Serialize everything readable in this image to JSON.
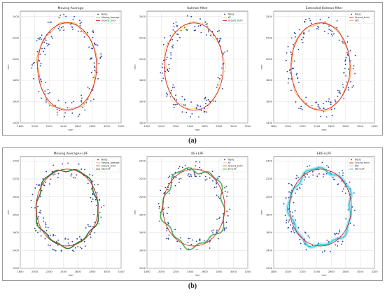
{
  "captions": {
    "a": "(a)",
    "b": "(b)"
  },
  "colors": {
    "noise": "#1f3aa8",
    "ground_truth": "#d62728",
    "ma": "#ff9f2e",
    "kf": "#f5c542",
    "ekf": "#ffa54a",
    "ma_lpf": "#2e7d32",
    "kf_lpf": "#4caf50",
    "ekf_lpf": "#26c6da"
  },
  "chart_data": [
    {
      "type": "scatter",
      "title": "Moving Average",
      "xlabel": "mm",
      "ylabel": "mm",
      "xlim": [
        1800,
        3200
      ],
      "ylim": [
        1400,
        2450
      ],
      "xticks": [
        "1800",
        "2000",
        "2200",
        "2400",
        "2600",
        "2800",
        "3000",
        "3200"
      ],
      "yticks": [
        "1400",
        "1600",
        "1800",
        "2000",
        "2200",
        "2400"
      ],
      "grid": true,
      "legend": "top-right",
      "legend_labels": [
        "Noise",
        "Moving_Average",
        "Ground_truth"
      ],
      "ground_truth": {
        "cx": 2450,
        "cy": 1930,
        "r": 410
      },
      "estimate": {
        "style": "line",
        "color_key": "ma",
        "amp": 12
      }
    },
    {
      "type": "scatter",
      "title": "Kalman filter",
      "xlabel": "mm",
      "ylabel": "mm",
      "xlim": [
        1800,
        3200
      ],
      "ylim": [
        1400,
        2450
      ],
      "xticks": [
        "1800",
        "2000",
        "2200",
        "2400",
        "2600",
        "2800",
        "3000",
        "3200"
      ],
      "yticks": [
        "1400",
        "1600",
        "1800",
        "2000",
        "2200",
        "2400"
      ],
      "grid": true,
      "legend": "top-right",
      "legend_labels": [
        "Noise",
        "KF",
        "Ground_truth"
      ],
      "ground_truth": {
        "cx": 2450,
        "cy": 1930,
        "r": 410
      },
      "estimate": {
        "style": "dotted",
        "color_key": "kf",
        "amp": 20
      }
    },
    {
      "type": "scatter",
      "title": "Extended Kalman filter",
      "xlabel": "mm",
      "ylabel": "mm",
      "xlim": [
        1800,
        3200
      ],
      "ylim": [
        1400,
        2450
      ],
      "xticks": [
        "1800",
        "2000",
        "2200",
        "2400",
        "2600",
        "2800",
        "3000",
        "3200"
      ],
      "yticks": [
        "1400",
        "1600",
        "1800",
        "2000",
        "2200",
        "2400"
      ],
      "grid": true,
      "legend": "top-right",
      "legend_labels": [
        "Noise",
        "Ground_truth",
        "EKF"
      ],
      "ground_truth": {
        "cx": 2450,
        "cy": 1930,
        "r": 410
      },
      "estimate": {
        "style": "line",
        "color_key": "ekf",
        "amp": 10
      }
    },
    {
      "type": "scatter",
      "title": "Moving Average+LPF",
      "xlabel": "mm",
      "ylabel": "mm",
      "xlim": [
        1800,
        3200
      ],
      "ylim": [
        1200,
        2450
      ],
      "xticks": [
        "1800",
        "2000",
        "2200",
        "2400",
        "2600",
        "2800",
        "3000",
        "3200"
      ],
      "yticks": [
        "1200",
        "1400",
        "1600",
        "1800",
        "2000",
        "2200",
        "2400"
      ],
      "grid": true,
      "legend": "top-right",
      "legend_labels": [
        "Noise",
        "Moving_Average",
        "Ground_truth",
        "MA+LPF"
      ],
      "ground_truth": {
        "cx": 2450,
        "cy": 1880,
        "r": 430
      },
      "estimate": {
        "style": "thick",
        "color_key": "ma_lpf",
        "amp": 18
      }
    },
    {
      "type": "scatter",
      "title": "KF+LPF",
      "xlabel": "mm",
      "ylabel": "mm",
      "xlim": [
        1800,
        3200
      ],
      "ylim": [
        1200,
        2450
      ],
      "xticks": [
        "1800",
        "2000",
        "2200",
        "2400",
        "2600",
        "2800",
        "3000",
        "3200"
      ],
      "yticks": [
        "1200",
        "1400",
        "1600",
        "1800",
        "2000",
        "2200",
        "2400"
      ],
      "grid": true,
      "legend": "top-right",
      "legend_labels": [
        "Noise",
        "KF",
        "Ground_truth",
        "KF+LPF"
      ],
      "ground_truth": {
        "cx": 2450,
        "cy": 1880,
        "r": 430
      },
      "estimate": {
        "style": "thick",
        "color_key": "kf_lpf",
        "amp": 30
      }
    },
    {
      "type": "scatter",
      "title": "EKF+LPF",
      "xlabel": "mm",
      "ylabel": "mm",
      "xlim": [
        1800,
        3200
      ],
      "ylim": [
        1200,
        2450
      ],
      "xticks": [
        "1800",
        "2000",
        "2200",
        "2400",
        "2600",
        "2800",
        "3000",
        "3200"
      ],
      "yticks": [
        "1200",
        "1400",
        "1600",
        "1800",
        "2000",
        "2200",
        "2400"
      ],
      "grid": true,
      "legend": "top-right",
      "legend_labels": [
        "Noise",
        "Ground_truth",
        "EKF",
        "EKF+LPF"
      ],
      "ground_truth": {
        "cx": 2450,
        "cy": 1880,
        "r": 430
      },
      "estimate": {
        "style": "band",
        "color_key": "ekf_lpf",
        "amp": 22
      }
    }
  ]
}
